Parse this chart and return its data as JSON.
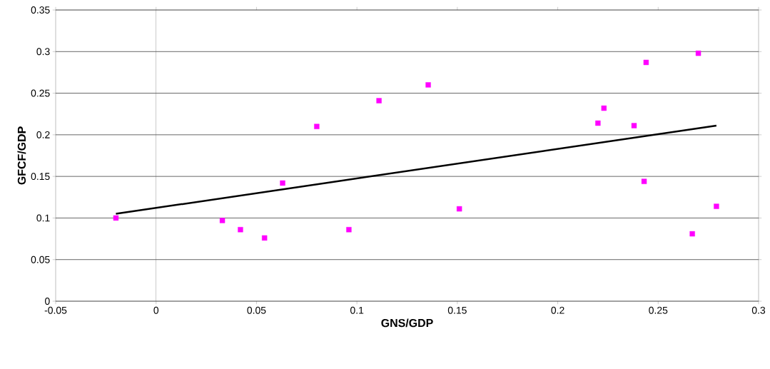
{
  "chart_data": {
    "type": "scatter",
    "xlabel": "GNS/GDP",
    "ylabel": "GFCF/GDP",
    "xlim": [
      -0.05,
      0.3
    ],
    "xticks": [
      -0.05,
      0,
      0.05,
      0.1,
      0.15,
      0.2,
      0.25,
      0.3
    ],
    "ylim": [
      0,
      0.35
    ],
    "yticks": [
      0,
      0.05,
      0.1,
      0.15,
      0.2,
      0.25,
      0.3,
      0.35
    ],
    "grid": "y",
    "series": [
      {
        "marker": "square",
        "color": "#ff00ff",
        "x": [
          -0.02,
          0.033,
          0.042,
          0.054,
          0.063,
          0.08,
          0.096,
          0.111,
          0.1355,
          0.151,
          0.22,
          0.223,
          0.238,
          0.243,
          0.244,
          0.267,
          0.27,
          0.279
        ],
        "values": [
          0.1,
          0.097,
          0.086,
          0.076,
          0.142,
          0.21,
          0.086,
          0.241,
          0.26,
          0.111,
          0.214,
          0.232,
          0.211,
          0.144,
          0.287,
          0.081,
          0.298,
          0.114
        ]
      },
      {
        "type": "line",
        "color": "#000000",
        "x": [
          -0.02,
          0.279
        ],
        "values": [
          0.105,
          0.211
        ]
      }
    ]
  }
}
